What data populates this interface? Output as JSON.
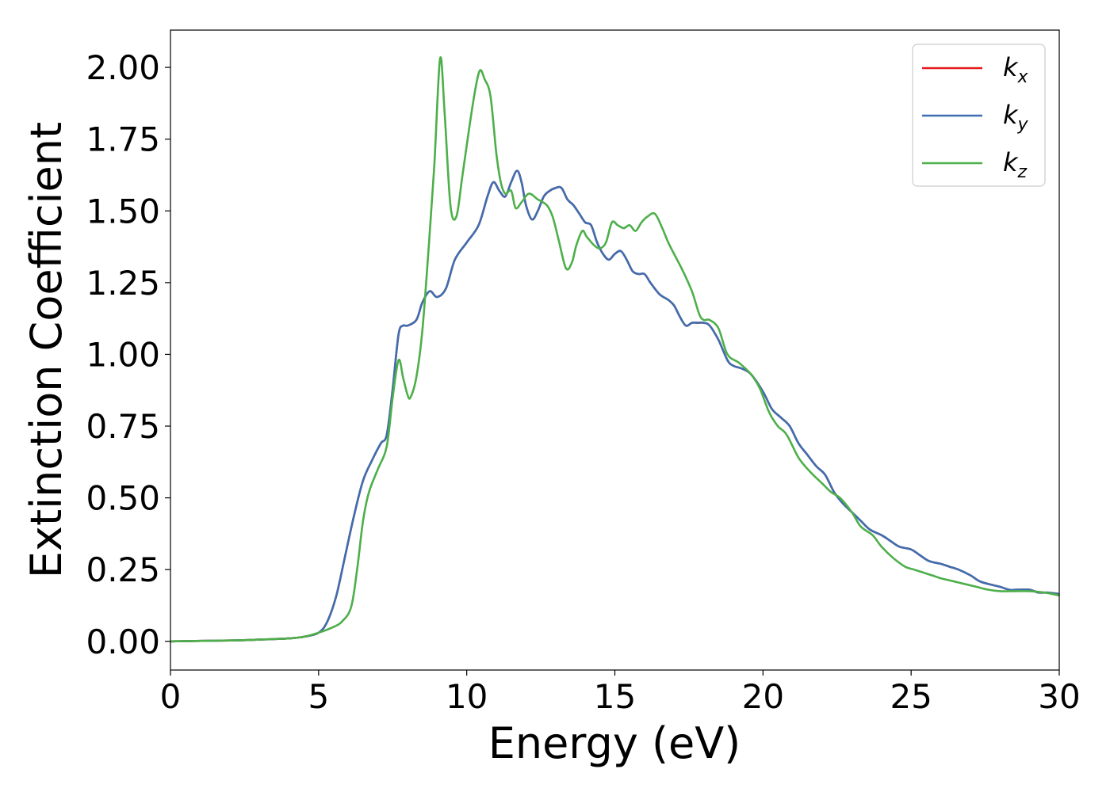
{
  "chart_data": {
    "type": "line",
    "xlabel": "Energy (eV)",
    "ylabel": "Extinction Coefficient",
    "xlim": [
      0,
      30
    ],
    "ylim": [
      -0.1,
      2.13
    ],
    "x_ticks": [
      "0",
      "5",
      "10",
      "15",
      "20",
      "25",
      "30"
    ],
    "x_tick_values": [
      0,
      5,
      10,
      15,
      20,
      25,
      30
    ],
    "y_ticks": [
      "0.00",
      "0.25",
      "0.50",
      "0.75",
      "1.00",
      "1.25",
      "1.50",
      "1.75",
      "2.00"
    ],
    "y_tick_values": [
      0,
      0.25,
      0.5,
      0.75,
      1.0,
      1.25,
      1.5,
      1.75,
      2.0
    ],
    "grid": false,
    "legend_position": "top-right",
    "series": [
      {
        "name": "k",
        "subscript": "x",
        "color": "#e41a1c",
        "x": [
          0,
          2,
          3,
          4,
          4.5,
          5,
          5.3,
          5.6,
          5.9,
          6.2,
          6.5,
          6.8,
          7.1,
          7.3,
          7.5,
          7.7,
          7.85,
          8.0,
          8.3,
          8.5,
          8.75,
          9.0,
          9.3,
          9.6,
          10.0,
          10.4,
          10.7,
          10.9,
          11.1,
          11.3,
          11.5,
          11.7,
          11.85,
          12.0,
          12.2,
          12.4,
          12.6,
          12.8,
          13.0,
          13.2,
          13.4,
          13.6,
          13.8,
          14.0,
          14.2,
          14.4,
          14.6,
          14.8,
          15.0,
          15.2,
          15.4,
          15.6,
          15.8,
          16.0,
          16.2,
          16.5,
          16.8,
          17.0,
          17.2,
          17.4,
          17.6,
          17.8,
          18.0,
          18.2,
          18.5,
          18.8,
          19.0,
          19.3,
          19.6,
          20.0,
          20.3,
          20.6,
          20.9,
          21.2,
          21.5,
          21.8,
          22.1,
          22.4,
          22.7,
          23.0,
          23.3,
          23.6,
          24.0,
          24.3,
          24.6,
          25.0,
          25.3,
          25.6,
          26.0,
          26.3,
          26.6,
          27.0,
          27.3,
          27.6,
          28.0,
          28.3,
          28.6,
          29.0,
          29.3,
          29.6,
          30.0
        ],
        "y": [
          0.0,
          0.003,
          0.006,
          0.01,
          0.016,
          0.03,
          0.07,
          0.16,
          0.3,
          0.44,
          0.56,
          0.63,
          0.69,
          0.72,
          0.88,
          1.07,
          1.1,
          1.1,
          1.12,
          1.18,
          1.22,
          1.2,
          1.23,
          1.33,
          1.39,
          1.45,
          1.55,
          1.6,
          1.57,
          1.55,
          1.6,
          1.64,
          1.6,
          1.52,
          1.47,
          1.5,
          1.55,
          1.57,
          1.58,
          1.58,
          1.54,
          1.52,
          1.49,
          1.46,
          1.45,
          1.39,
          1.35,
          1.33,
          1.35,
          1.36,
          1.33,
          1.29,
          1.28,
          1.28,
          1.25,
          1.21,
          1.19,
          1.17,
          1.13,
          1.1,
          1.11,
          1.11,
          1.11,
          1.1,
          1.05,
          0.98,
          0.96,
          0.95,
          0.93,
          0.87,
          0.81,
          0.78,
          0.75,
          0.69,
          0.65,
          0.61,
          0.58,
          0.52,
          0.48,
          0.45,
          0.42,
          0.39,
          0.37,
          0.35,
          0.33,
          0.32,
          0.3,
          0.28,
          0.27,
          0.26,
          0.25,
          0.23,
          0.21,
          0.2,
          0.19,
          0.18,
          0.18,
          0.18,
          0.17,
          0.17,
          0.165
        ]
      },
      {
        "name": "k",
        "subscript": "y",
        "color": "#3d6fb0",
        "x": [
          0,
          2,
          3,
          4,
          4.5,
          5,
          5.3,
          5.6,
          5.9,
          6.2,
          6.5,
          6.8,
          7.1,
          7.3,
          7.5,
          7.7,
          7.85,
          8.0,
          8.3,
          8.5,
          8.75,
          9.0,
          9.3,
          9.6,
          10.0,
          10.4,
          10.7,
          10.9,
          11.1,
          11.3,
          11.5,
          11.7,
          11.85,
          12.0,
          12.2,
          12.4,
          12.6,
          12.8,
          13.0,
          13.2,
          13.4,
          13.6,
          13.8,
          14.0,
          14.2,
          14.4,
          14.6,
          14.8,
          15.0,
          15.2,
          15.4,
          15.6,
          15.8,
          16.0,
          16.2,
          16.5,
          16.8,
          17.0,
          17.2,
          17.4,
          17.6,
          17.8,
          18.0,
          18.2,
          18.5,
          18.8,
          19.0,
          19.3,
          19.6,
          20.0,
          20.3,
          20.6,
          20.9,
          21.2,
          21.5,
          21.8,
          22.1,
          22.4,
          22.7,
          23.0,
          23.3,
          23.6,
          24.0,
          24.3,
          24.6,
          25.0,
          25.3,
          25.6,
          26.0,
          26.3,
          26.6,
          27.0,
          27.3,
          27.6,
          28.0,
          28.3,
          28.6,
          29.0,
          29.3,
          29.6,
          30.0
        ],
        "y": [
          0.0,
          0.003,
          0.006,
          0.01,
          0.016,
          0.03,
          0.07,
          0.16,
          0.3,
          0.44,
          0.56,
          0.63,
          0.69,
          0.72,
          0.88,
          1.07,
          1.1,
          1.1,
          1.12,
          1.18,
          1.22,
          1.2,
          1.23,
          1.33,
          1.39,
          1.45,
          1.55,
          1.6,
          1.57,
          1.55,
          1.6,
          1.64,
          1.6,
          1.52,
          1.47,
          1.5,
          1.55,
          1.57,
          1.58,
          1.58,
          1.54,
          1.52,
          1.49,
          1.46,
          1.45,
          1.39,
          1.35,
          1.33,
          1.35,
          1.36,
          1.33,
          1.29,
          1.28,
          1.28,
          1.25,
          1.21,
          1.19,
          1.17,
          1.13,
          1.1,
          1.11,
          1.11,
          1.11,
          1.1,
          1.05,
          0.98,
          0.96,
          0.95,
          0.93,
          0.87,
          0.81,
          0.78,
          0.75,
          0.69,
          0.65,
          0.61,
          0.58,
          0.52,
          0.48,
          0.45,
          0.42,
          0.39,
          0.37,
          0.35,
          0.33,
          0.32,
          0.3,
          0.28,
          0.27,
          0.26,
          0.25,
          0.23,
          0.21,
          0.2,
          0.19,
          0.18,
          0.18,
          0.18,
          0.17,
          0.17,
          0.165
        ]
      },
      {
        "name": "k",
        "subscript": "z",
        "color": "#4daf4a",
        "x": [
          0,
          2,
          3,
          4,
          4.5,
          5,
          5.5,
          5.8,
          6.1,
          6.3,
          6.5,
          6.7,
          7.0,
          7.3,
          7.5,
          7.7,
          7.85,
          8.0,
          8.1,
          8.3,
          8.5,
          8.7,
          8.9,
          9.1,
          9.25,
          9.45,
          9.65,
          9.85,
          10.1,
          10.3,
          10.45,
          10.6,
          10.8,
          11.0,
          11.15,
          11.3,
          11.5,
          11.65,
          11.85,
          12.1,
          12.4,
          12.7,
          12.9,
          13.1,
          13.35,
          13.55,
          13.7,
          13.9,
          14.05,
          14.3,
          14.5,
          14.7,
          14.9,
          15.1,
          15.3,
          15.5,
          15.7,
          15.9,
          16.1,
          16.35,
          16.6,
          16.8,
          17.0,
          17.3,
          17.6,
          17.85,
          18.0,
          18.2,
          18.5,
          18.8,
          19.2,
          19.6,
          19.9,
          20.2,
          20.5,
          20.8,
          21.2,
          21.6,
          22.0,
          22.3,
          22.6,
          23.0,
          23.3,
          23.7,
          24.0,
          24.4,
          24.8,
          25.1,
          25.4,
          25.7,
          26.0,
          26.4,
          26.8,
          27.2,
          27.6,
          28.0,
          28.5,
          29.0,
          29.5,
          30.0
        ],
        "y": [
          0.0,
          0.003,
          0.006,
          0.01,
          0.016,
          0.03,
          0.05,
          0.07,
          0.12,
          0.25,
          0.42,
          0.52,
          0.6,
          0.68,
          0.85,
          0.98,
          0.92,
          0.86,
          0.85,
          0.92,
          1.08,
          1.35,
          1.65,
          2.03,
          1.85,
          1.52,
          1.48,
          1.62,
          1.8,
          1.93,
          1.99,
          1.96,
          1.9,
          1.7,
          1.6,
          1.56,
          1.57,
          1.51,
          1.53,
          1.56,
          1.54,
          1.52,
          1.48,
          1.4,
          1.3,
          1.32,
          1.38,
          1.43,
          1.41,
          1.38,
          1.37,
          1.39,
          1.46,
          1.45,
          1.44,
          1.45,
          1.43,
          1.46,
          1.48,
          1.49,
          1.44,
          1.39,
          1.35,
          1.29,
          1.22,
          1.14,
          1.12,
          1.12,
          1.09,
          1.0,
          0.97,
          0.93,
          0.88,
          0.8,
          0.75,
          0.72,
          0.64,
          0.59,
          0.55,
          0.52,
          0.5,
          0.45,
          0.4,
          0.37,
          0.33,
          0.29,
          0.26,
          0.25,
          0.24,
          0.23,
          0.22,
          0.21,
          0.2,
          0.19,
          0.18,
          0.175,
          0.175,
          0.175,
          0.17,
          0.16
        ]
      }
    ]
  }
}
